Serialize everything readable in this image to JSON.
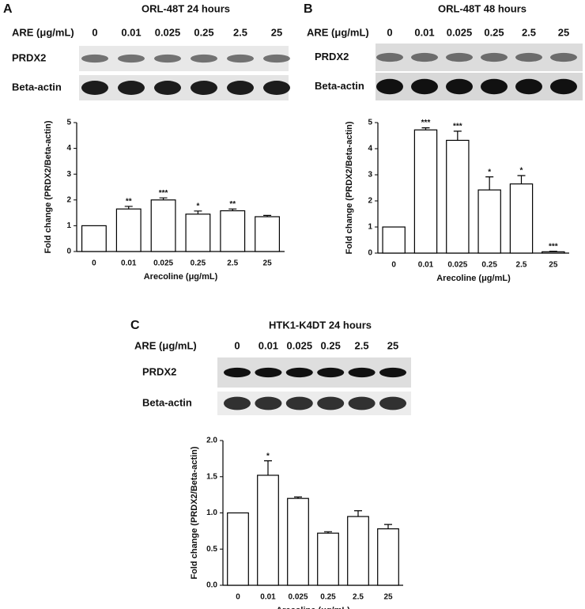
{
  "chart_data": [
    {
      "type": "bar",
      "panel": "A",
      "blot": {
        "title": "ORL-48T 24 hours",
        "lane_label": "ARE (μg/mL)",
        "lanes": [
          "0",
          "0.01",
          "0.025",
          "0.25",
          "2.5",
          "25"
        ],
        "rows": [
          "PRDX2",
          "Beta-actin"
        ]
      },
      "y_label": "Fold change (PRDX2/Beta-actin)",
      "x_label": "Arecoline (μg/mL)",
      "categories": [
        "0",
        "0.01",
        "0.025",
        "0.25",
        "2.5",
        "25"
      ],
      "values": [
        1,
        1.65,
        2.0,
        1.45,
        1.58,
        1.35
      ],
      "errors": [
        null,
        0.1,
        0.08,
        0.12,
        0.07,
        0.05
      ],
      "annotations": [
        null,
        "**",
        "***",
        "*",
        "**",
        null
      ],
      "color": "#ffffff",
      "ylim": [
        0,
        5
      ],
      "yticks": [
        0,
        1,
        2,
        3,
        4,
        5
      ]
    },
    {
      "type": "bar",
      "panel": "B",
      "blot": {
        "title": "ORL-48T 48 hours",
        "lane_label": "ARE (μg/mL)",
        "lanes": [
          "0",
          "0.01",
          "0.025",
          "0.25",
          "2.5",
          "25"
        ],
        "rows": [
          "PRDX2",
          "Beta-actin"
        ]
      },
      "y_label": "Fold change (PRDX2/Beta-actin)",
      "x_label": "Arecoline (μg/mL)",
      "categories": [
        "0",
        "0.01",
        "0.025",
        "0.25",
        "2.5",
        "25"
      ],
      "values": [
        1,
        4.72,
        4.32,
        2.42,
        2.65,
        0.05
      ],
      "errors": [
        null,
        0.08,
        0.35,
        0.5,
        0.32,
        0.02
      ],
      "annotations": [
        null,
        "***",
        "***",
        "*",
        "*",
        "***"
      ],
      "color": "#ffffff",
      "ylim": [
        0,
        5
      ],
      "yticks": [
        0,
        1,
        2,
        3,
        4,
        5
      ]
    },
    {
      "type": "bar",
      "panel": "C",
      "blot": {
        "title": "HTK1-K4DT 24  hours",
        "lane_label": "ARE (μg/mL)",
        "lanes": [
          "0",
          "0.01",
          "0.025",
          "0.25",
          "2.5",
          "25"
        ],
        "rows": [
          "PRDX2",
          "Beta-actin"
        ]
      },
      "y_label": "Fold change (PRDX2/Beta-actin)",
      "x_label": "Arecoline (μg/mL)",
      "categories": [
        "0",
        "0.01",
        "0.025",
        "0.25",
        "2.5",
        "25"
      ],
      "values": [
        1.0,
        1.52,
        1.2,
        0.72,
        0.95,
        0.78
      ],
      "errors": [
        null,
        0.2,
        0.02,
        0.02,
        0.08,
        0.06
      ],
      "annotations": [
        null,
        "*",
        null,
        null,
        null,
        null
      ],
      "color": "#ffffff",
      "ylim": [
        0,
        2.0
      ],
      "yticks": [
        {
          "value": 0,
          "label": "0.0"
        },
        {
          "value": 0.5,
          "label": "0.5"
        },
        {
          "value": 1.0,
          "label": "1.0"
        },
        {
          "value": 1.5,
          "label": "1.5"
        },
        {
          "value": 2.0,
          "label": "2.0"
        }
      ]
    }
  ]
}
